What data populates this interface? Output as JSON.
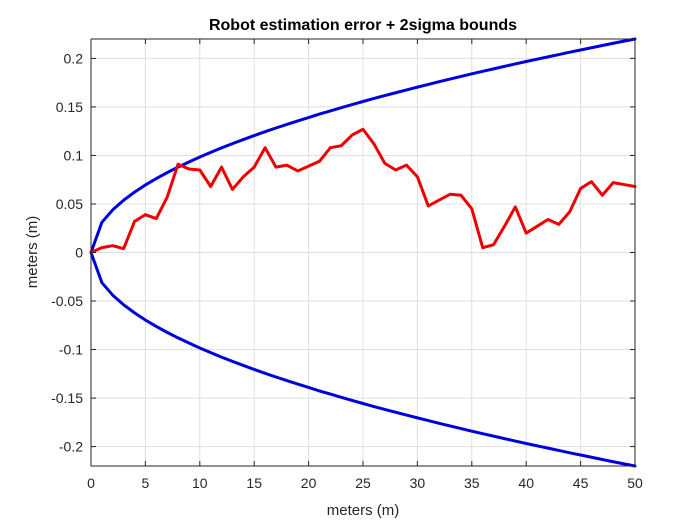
{
  "chart_data": {
    "type": "line",
    "title": "Robot estimation error + 2sigma bounds",
    "xlabel": "meters (m)",
    "ylabel": "meters (m)",
    "xlim": [
      0,
      50
    ],
    "ylim": [
      -0.22,
      0.22
    ],
    "grid": true,
    "x_ticks": [
      0,
      5,
      10,
      15,
      20,
      25,
      30,
      35,
      40,
      45,
      50
    ],
    "x_tick_labels": [
      "0",
      "5",
      "10",
      "15",
      "20",
      "25",
      "30",
      "35",
      "40",
      "45",
      "50"
    ],
    "y_ticks": [
      0.2,
      0.15,
      0.1,
      0.05,
      0,
      -0.05,
      -0.1,
      -0.15,
      -0.2
    ],
    "y_tick_labels": [
      "0.2",
      "0.15",
      "0.1",
      "0.05",
      "0",
      "-0.05",
      "-0.1",
      "-0.15",
      "-0.2"
    ],
    "series": [
      {
        "color": "#0000dd",
        "x": [
          0,
          1,
          2,
          3,
          4,
          5,
          6,
          7,
          8,
          9,
          10,
          11,
          12,
          13,
          14,
          15,
          16,
          17,
          18,
          19,
          20,
          21,
          22,
          23,
          24,
          25,
          26,
          27,
          28,
          29,
          30,
          31,
          32,
          33,
          34,
          35,
          36,
          37,
          38,
          39,
          40,
          41,
          42,
          43,
          44,
          45,
          46,
          47,
          48,
          49,
          50
        ],
        "values": [
          0,
          0.0311,
          0.044,
          0.0539,
          0.0622,
          0.0696,
          0.0762,
          0.0823,
          0.088,
          0.0933,
          0.0984,
          0.1032,
          0.1078,
          0.1122,
          0.1164,
          0.1205,
          0.1245,
          0.1283,
          0.132,
          0.1356,
          0.1391,
          0.1426,
          0.1459,
          0.1492,
          0.1524,
          0.1556,
          0.1587,
          0.1617,
          0.1646,
          0.1675,
          0.1704,
          0.1732,
          0.176,
          0.1787,
          0.1814,
          0.1841,
          0.1867,
          0.1892,
          0.1918,
          0.1943,
          0.1968,
          0.1992,
          0.2016,
          0.204,
          0.2064,
          0.2087,
          0.211,
          0.2133,
          0.2156,
          0.2178,
          0.22
        ]
      },
      {
        "color": "#0000dd",
        "x": [
          0,
          1,
          2,
          3,
          4,
          5,
          6,
          7,
          8,
          9,
          10,
          11,
          12,
          13,
          14,
          15,
          16,
          17,
          18,
          19,
          20,
          21,
          22,
          23,
          24,
          25,
          26,
          27,
          28,
          29,
          30,
          31,
          32,
          33,
          34,
          35,
          36,
          37,
          38,
          39,
          40,
          41,
          42,
          43,
          44,
          45,
          46,
          47,
          48,
          49,
          50
        ],
        "values": [
          0,
          -0.0311,
          -0.044,
          -0.0539,
          -0.0622,
          -0.0696,
          -0.0762,
          -0.0823,
          -0.088,
          -0.0933,
          -0.0984,
          -0.1032,
          -0.1078,
          -0.1122,
          -0.1164,
          -0.1205,
          -0.1245,
          -0.1283,
          -0.132,
          -0.1356,
          -0.1391,
          -0.1426,
          -0.1459,
          -0.1492,
          -0.1524,
          -0.1556,
          -0.1587,
          -0.1617,
          -0.1646,
          -0.1675,
          -0.1704,
          -0.1732,
          -0.176,
          -0.1787,
          -0.1814,
          -0.1841,
          -0.1867,
          -0.1892,
          -0.1918,
          -0.1943,
          -0.1968,
          -0.1992,
          -0.2016,
          -0.204,
          -0.2064,
          -0.2087,
          -0.211,
          -0.2133,
          -0.2156,
          -0.2178,
          -0.22
        ]
      },
      {
        "color": "#ee0000",
        "x": [
          0,
          1,
          2,
          3,
          4,
          5,
          6,
          7,
          8,
          9,
          10,
          11,
          12,
          13,
          14,
          15,
          16,
          17,
          18,
          19,
          20,
          21,
          22,
          23,
          24,
          25,
          26,
          27,
          28,
          29,
          30,
          31,
          32,
          33,
          34,
          35,
          36,
          37,
          38,
          39,
          40,
          41,
          42,
          43,
          44,
          45,
          46,
          47,
          48,
          49,
          50
        ],
        "values": [
          0,
          0.005,
          0.007,
          0.004,
          0.032,
          0.039,
          0.035,
          0.057,
          0.091,
          0.086,
          0.085,
          0.068,
          0.088,
          0.065,
          0.078,
          0.088,
          0.108,
          0.088,
          0.09,
          0.084,
          0.089,
          0.094,
          0.108,
          0.11,
          0.121,
          0.127,
          0.112,
          0.092,
          0.085,
          0.09,
          0.078,
          0.048,
          0.054,
          0.06,
          0.059,
          0.045,
          0.005,
          0.008,
          0.027,
          0.047,
          0.02,
          0.027,
          0.034,
          0.029,
          0.042,
          0.066,
          0.073,
          0.059,
          0.072,
          0.07,
          0.068
        ]
      }
    ]
  }
}
